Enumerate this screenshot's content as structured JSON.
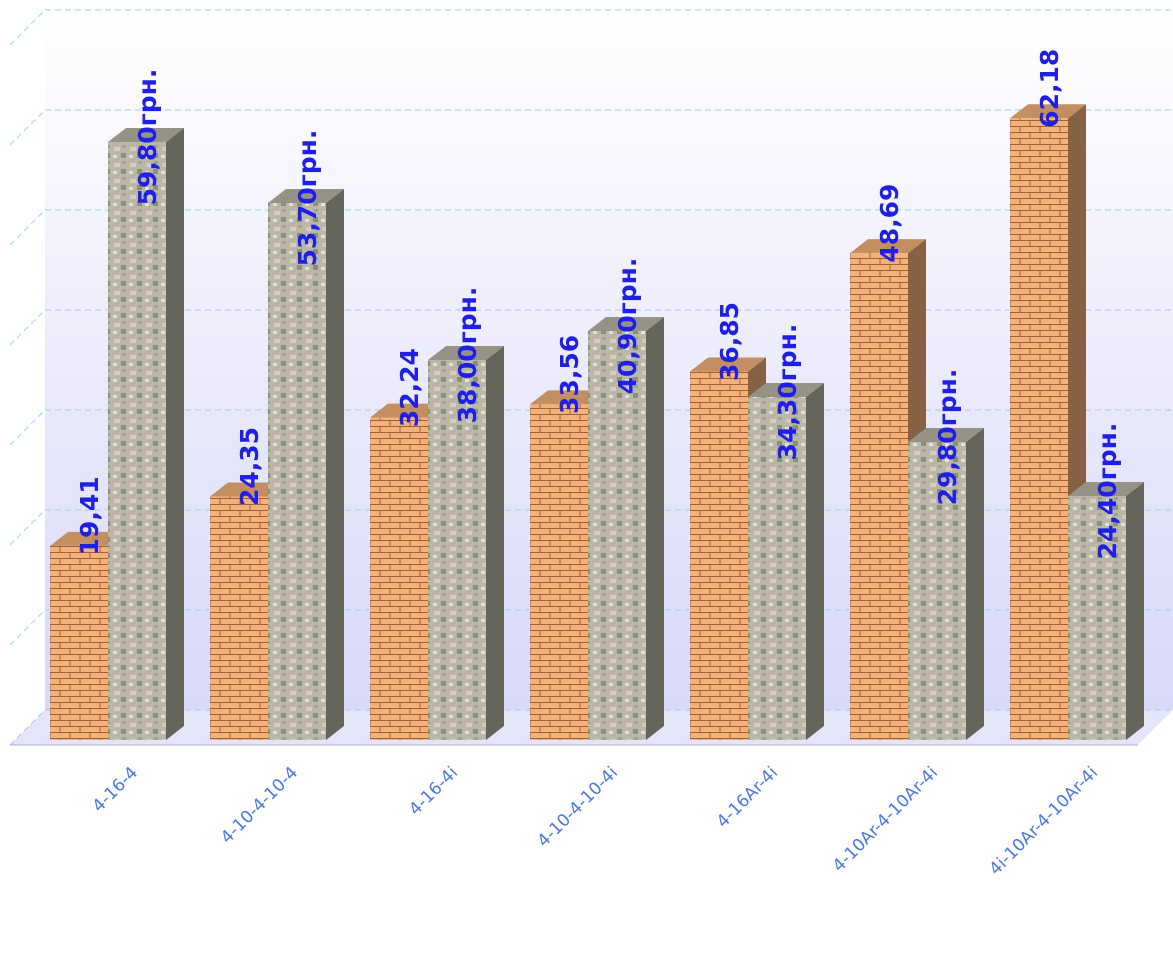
{
  "chart_data": {
    "type": "bar3d",
    "categories": [
      "4-16-4",
      "4-10-4-10-4",
      "4-16-4i",
      "4-10-4-10-4i",
      "4-16Ar-4i",
      "4-10Ar-4-10Ar-4i",
      "4i-10Ar-4-10Ar-4i"
    ],
    "series": [
      {
        "color": "#f2b27a",
        "values": [
          19.41,
          24.35,
          32.24,
          33.56,
          36.85,
          48.69,
          62.18
        ],
        "value_labels": [
          "19,41",
          "24,35",
          "32,24",
          "33,56",
          "36,85",
          "48,69",
          "62,18"
        ]
      },
      {
        "color": "#b9b8a6",
        "values": [
          59.8,
          53.7,
          38.0,
          40.9,
          34.3,
          29.8,
          24.4
        ],
        "value_labels": [
          "59,80грн.",
          "53,70грн.",
          "38,00грн.",
          "40,90грн.",
          "34,30грн.",
          "29,80грн.",
          "24,40грн."
        ]
      }
    ],
    "ylim": [
      0,
      70
    ],
    "yticks": [
      0,
      10,
      20,
      30,
      40,
      50,
      60,
      70
    ],
    "grid": true
  }
}
